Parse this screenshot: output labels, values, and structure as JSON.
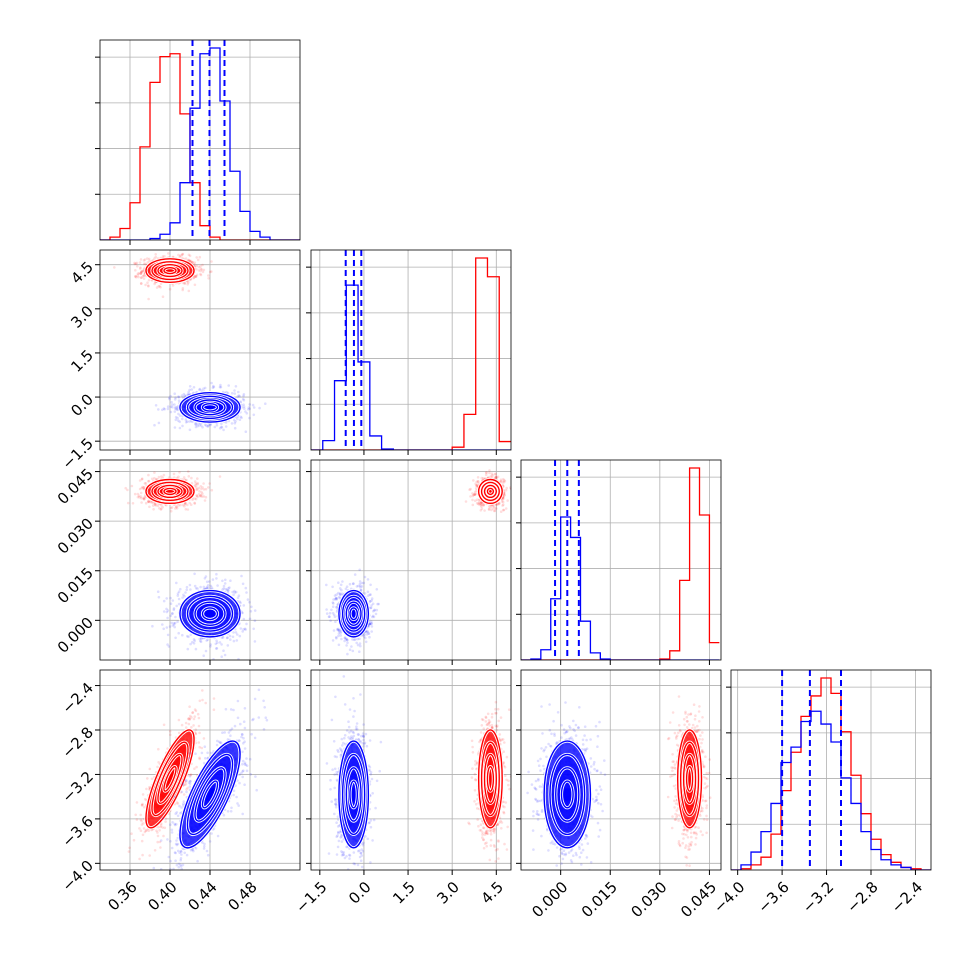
{
  "chart_data": {
    "type": "corner",
    "title": "",
    "grid": true,
    "legend": "none",
    "params": [
      {
        "ticks": [
          0.36,
          0.4,
          0.44,
          0.48
        ],
        "tick_labels": [
          "0.36",
          "0.40",
          "0.44",
          "0.48"
        ],
        "range": [
          0.33,
          0.53
        ]
      },
      {
        "ticks": [
          -1.5,
          0.0,
          1.5,
          3.0,
          4.5
        ],
        "tick_labels": [
          "−1.5",
          "0.0",
          "1.5",
          "3.0",
          "4.5"
        ],
        "range": [
          -1.8,
          5.0
        ]
      },
      {
        "ticks": [
          0.0,
          0.015,
          0.03,
          0.045
        ],
        "tick_labels": [
          "0.000",
          "0.015",
          "0.030",
          "0.045"
        ],
        "range": [
          -0.012,
          0.0485
        ]
      },
      {
        "ticks": [
          -4.0,
          -3.6,
          -3.2,
          -2.8,
          -2.4
        ],
        "tick_labels": [
          "−4.0",
          "−3.6",
          "−3.2",
          "−2.8",
          "−2.4"
        ],
        "range": [
          -4.06,
          -2.26
        ]
      }
    ],
    "series": [
      {
        "color": "#ff0000",
        "show_quantiles": false,
        "mean": [
          0.4,
          4.3,
          0.039,
          -3.24
        ],
        "sd": [
          0.012,
          0.2,
          0.0018,
          0.22
        ],
        "corr": [
          [
            1,
            0,
            0,
            0.8
          ],
          [
            0,
            1,
            0,
            0
          ],
          [
            0,
            0,
            1,
            0
          ],
          [
            0.8,
            0,
            0,
            1
          ]
        ],
        "histograms": [
          {
            "bin_edges": [
              0.33,
              0.34,
              0.35,
              0.36,
              0.37,
              0.38,
              0.39,
              0.4,
              0.41,
              0.42,
              0.43,
              0.44,
              0.45,
              0.46,
              0.47,
              0.48,
              0.49,
              0.5,
              0.51,
              0.52,
              0.53
            ],
            "counts": [
              0,
              2,
              8,
              26,
              65,
              110,
              128,
              130,
              88,
              40,
              10,
              2,
              0,
              0,
              0,
              0,
              0,
              0,
              0,
              0
            ]
          },
          {
            "bin_edges": [
              -1.8,
              -1.4,
              -1.0,
              -0.6,
              -0.2,
              0.2,
              0.6,
              1.0,
              1.4,
              1.8,
              2.2,
              2.6,
              3.0,
              3.4,
              3.8,
              4.2,
              4.6,
              5.0
            ],
            "counts": [
              0,
              0,
              0,
              0,
              0,
              0,
              0,
              0,
              0,
              0,
              0,
              0,
              3,
              38,
              205,
              185,
              9
            ]
          },
          {
            "bin_edges": [
              -0.012,
              -0.009,
              -0.006,
              -0.003,
              0.0,
              0.003,
              0.006,
              0.009,
              0.012,
              0.015,
              0.018,
              0.021,
              0.024,
              0.027,
              0.03,
              0.033,
              0.036,
              0.039,
              0.042,
              0.045,
              0.048
            ],
            "counts": [
              0,
              0,
              0,
              0,
              0,
              0,
              0,
              0,
              0,
              0,
              0,
              0,
              0,
              0,
              1,
              9,
              78,
              188,
              142,
              17
            ]
          },
          {
            "bin_edges": [
              -4.06,
              -3.97,
              -3.88,
              -3.79,
              -3.7,
              -3.61,
              -3.52,
              -3.43,
              -3.34,
              -3.25,
              -3.16,
              -3.07,
              -2.98,
              -2.89,
              -2.8,
              -2.71,
              -2.62,
              -2.53,
              -2.44,
              -2.35,
              -2.26
            ],
            "counts": [
              0,
              1,
              4,
              10,
              28,
              62,
              92,
              120,
              136,
              150,
              138,
              108,
              74,
              44,
              24,
              12,
              6,
              2,
              1,
              0
            ]
          }
        ]
      },
      {
        "color": "#0000ff",
        "show_quantiles": true,
        "mean": [
          0.44,
          -0.35,
          0.002,
          -3.38
        ],
        "sd": [
          0.015,
          0.25,
          0.0035,
          0.24
        ],
        "corr": [
          [
            1,
            0,
            0,
            0.75
          ],
          [
            0,
            1,
            0,
            0
          ],
          [
            0,
            0,
            1,
            0
          ],
          [
            0.75,
            0,
            0,
            1
          ]
        ],
        "quantiles": [
          [
            0.4225,
            0.4395,
            0.4545
          ],
          [
            -0.62,
            -0.34,
            -0.09
          ],
          [
            -0.0017,
            0.002,
            0.0055
          ],
          [
            -3.6,
            -3.35,
            -3.07
          ]
        ],
        "histograms": [
          {
            "bin_edges": [
              0.33,
              0.34,
              0.35,
              0.36,
              0.37,
              0.38,
              0.39,
              0.4,
              0.41,
              0.42,
              0.43,
              0.44,
              0.45,
              0.46,
              0.47,
              0.48,
              0.49,
              0.5,
              0.51,
              0.52,
              0.53
            ],
            "counts": [
              0,
              0,
              0,
              0,
              0,
              1,
              4,
              12,
              40,
              92,
              130,
              134,
              97,
              48,
              20,
              6,
              2,
              0,
              0,
              0
            ]
          },
          {
            "bin_edges": [
              -1.8,
              -1.4,
              -1.0,
              -0.6,
              -0.2,
              0.2,
              0.6,
              1.0,
              1.4,
              1.8,
              2.2,
              2.6,
              3.0,
              3.4,
              3.8,
              4.2,
              4.6,
              5.0
            ],
            "counts": [
              0,
              10,
              74,
              176,
              94,
              15,
              1,
              0,
              0,
              0,
              0,
              0,
              0,
              0,
              0,
              0,
              0
            ]
          },
          {
            "bin_edges": [
              -0.012,
              -0.009,
              -0.006,
              -0.003,
              0.0,
              0.003,
              0.006,
              0.009,
              0.012,
              0.015,
              0.018,
              0.021,
              0.024,
              0.027,
              0.03,
              0.033,
              0.036,
              0.039,
              0.042,
              0.045,
              0.048
            ],
            "counts": [
              0,
              1,
              10,
              60,
              140,
              120,
              38,
              7,
              1,
              0,
              0,
              0,
              0,
              0,
              0,
              0,
              0,
              0,
              0,
              0
            ]
          },
          {
            "bin_edges": [
              -4.06,
              -3.97,
              -3.88,
              -3.79,
              -3.7,
              -3.61,
              -3.52,
              -3.43,
              -3.34,
              -3.25,
              -3.16,
              -3.07,
              -2.98,
              -2.89,
              -2.8,
              -2.71,
              -2.62,
              -2.53,
              -2.44,
              -2.35,
              -2.26
            ],
            "counts": [
              0,
              4,
              14,
              30,
              52,
              84,
              96,
              116,
              124,
              114,
              100,
              72,
              52,
              30,
              16,
              8,
              4,
              2,
              0,
              0
            ]
          }
        ]
      }
    ]
  }
}
